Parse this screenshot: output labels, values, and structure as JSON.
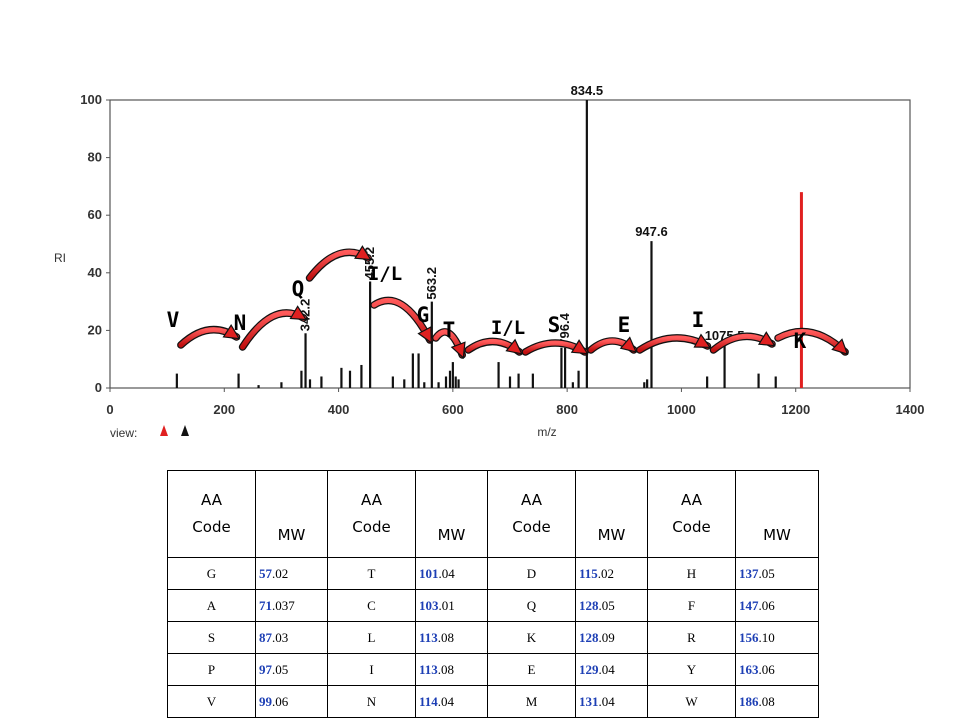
{
  "chart_data": {
    "type": "bar",
    "title": "",
    "xlabel": "m/z",
    "ylabel": "RI",
    "xlim": [
      0,
      1400
    ],
    "ylim": [
      0,
      100
    ],
    "x_ticks": [
      0,
      200,
      400,
      600,
      800,
      1000,
      1200,
      1400
    ],
    "y_ticks": [
      0,
      20,
      40,
      60,
      80,
      100
    ],
    "view_label": "view:",
    "peaks": [
      {
        "x": 117,
        "y": 5
      },
      {
        "x": 225,
        "y": 5
      },
      {
        "x": 260,
        "y": 1
      },
      {
        "x": 300,
        "y": 2
      },
      {
        "x": 335,
        "y": 6
      },
      {
        "x": 342.2,
        "y": 19,
        "label": "342.2"
      },
      {
        "x": 350,
        "y": 3
      },
      {
        "x": 370,
        "y": 4
      },
      {
        "x": 405,
        "y": 7
      },
      {
        "x": 420,
        "y": 6
      },
      {
        "x": 440,
        "y": 8
      },
      {
        "x": 455.2,
        "y": 37,
        "label": "455.2"
      },
      {
        "x": 495,
        "y": 4
      },
      {
        "x": 515,
        "y": 3
      },
      {
        "x": 530,
        "y": 12
      },
      {
        "x": 540,
        "y": 12
      },
      {
        "x": 550,
        "y": 2
      },
      {
        "x": 563.2,
        "y": 30,
        "label": "563.2"
      },
      {
        "x": 575,
        "y": 2
      },
      {
        "x": 588,
        "y": 4
      },
      {
        "x": 595,
        "y": 6
      },
      {
        "x": 600,
        "y": 9
      },
      {
        "x": 605,
        "y": 4
      },
      {
        "x": 610,
        "y": 3
      },
      {
        "x": 680,
        "y": 9
      },
      {
        "x": 700,
        "y": 4
      },
      {
        "x": 715,
        "y": 5
      },
      {
        "x": 740,
        "y": 5
      },
      {
        "x": 790,
        "y": 14
      },
      {
        "x": 796.4,
        "y": 14,
        "label": "796.4"
      },
      {
        "x": 810,
        "y": 2
      },
      {
        "x": 820,
        "y": 6
      },
      {
        "x": 834.5,
        "y": 100,
        "label": "834.5"
      },
      {
        "x": 935,
        "y": 2
      },
      {
        "x": 940,
        "y": 3
      },
      {
        "x": 947.6,
        "y": 51,
        "label": "947.6"
      },
      {
        "x": 1045,
        "y": 4
      },
      {
        "x": 1075.5,
        "y": 15,
        "label": "1075.5"
      },
      {
        "x": 1135,
        "y": 5
      },
      {
        "x": 1165,
        "y": 4
      }
    ],
    "red_line": {
      "x": 1210,
      "y": 68
    },
    "residues": [
      {
        "code": "V",
        "from": 117,
        "to": 225
      },
      {
        "code": "N",
        "from": 225,
        "to": 342.2
      },
      {
        "code": "Q",
        "from": 342.2,
        "to": 455.2
      },
      {
        "code": "I/L",
        "from": 455.2,
        "to": 563.2
      },
      {
        "code": "G",
        "from": 563.2,
        "to": 620
      },
      {
        "code": "T",
        "from": 620,
        "to": 720
      },
      {
        "code": "I/L",
        "from": 720,
        "to": 834.5
      },
      {
        "code": "S",
        "from": 834.5,
        "to": 920
      },
      {
        "code": "E",
        "from": 920,
        "to": 1049
      },
      {
        "code": "I",
        "from": 1049,
        "to": 1162
      },
      {
        "code": "K",
        "from": 1162,
        "to": 1290
      }
    ]
  },
  "table": {
    "header_aa": "AA",
    "header_code": "Code",
    "header_mw": "MW",
    "rows": [
      [
        {
          "code": "G",
          "int": "57",
          "dec": ".02"
        },
        {
          "code": "T",
          "int": "101",
          "dec": ".04"
        },
        {
          "code": "D",
          "int": "115",
          "dec": ".02"
        },
        {
          "code": "H",
          "int": "137",
          "dec": ".05"
        }
      ],
      [
        {
          "code": "A",
          "int": "71",
          "dec": ".037"
        },
        {
          "code": "C",
          "int": "103",
          "dec": ".01"
        },
        {
          "code": "Q",
          "int": "128",
          "dec": ".05"
        },
        {
          "code": "F",
          "int": "147",
          "dec": ".06"
        }
      ],
      [
        {
          "code": "S",
          "int": "87",
          "dec": ".03"
        },
        {
          "code": "L",
          "int": "113",
          "dec": ".08"
        },
        {
          "code": "K",
          "int": "128",
          "dec": ".09"
        },
        {
          "code": "R",
          "int": "156",
          "dec": ".10"
        }
      ],
      [
        {
          "code": "P",
          "int": "97",
          "dec": ".05"
        },
        {
          "code": "I",
          "int": "113",
          "dec": ".08"
        },
        {
          "code": "E",
          "int": "129",
          "dec": ".04"
        },
        {
          "code": "Y",
          "int": "163",
          "dec": ".06"
        }
      ],
      [
        {
          "code": "V",
          "int": "99",
          "dec": ".06"
        },
        {
          "code": "N",
          "int": "114",
          "dec": ".04"
        },
        {
          "code": "M",
          "int": "131",
          "dec": ".04"
        },
        {
          "code": "W",
          "int": "186",
          "dec": ".08"
        }
      ]
    ]
  },
  "colors": {
    "axis": "#555555",
    "peak": "#111111",
    "red_line": "#e02020",
    "arrow_fill": "#e02020",
    "arrow_stroke": "#111111",
    "mw_int": "#1d3fb5",
    "view_up_red": "#e02020",
    "view_up_black": "#111111"
  }
}
